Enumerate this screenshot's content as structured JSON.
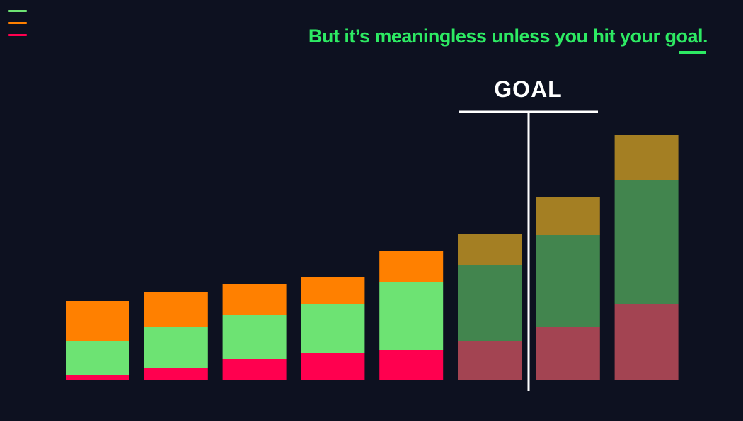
{
  "headline": "But it’s meaningless unless you hit your goal.",
  "goal_label": "GOAL",
  "menu": {
    "icon": "hamburger-menu-icon"
  },
  "colors": {
    "background": "#0d1120",
    "headline": "#2dea63",
    "goal_marker": "#ffffff",
    "menu_lines": [
      "#6de373",
      "#ff8000",
      "#ff004f"
    ],
    "segments_before_goal": [
      "#ff004f",
      "#6de373",
      "#ff8000"
    ],
    "segments_after_goal": [
      "#a34452",
      "#42854e",
      "#a47f23"
    ]
  },
  "chart_data": {
    "type": "bar",
    "stacked": true,
    "title": "",
    "xlabel": "",
    "ylabel": "",
    "ylim": [
      0,
      360
    ],
    "categories": [
      "",
      "",
      "",
      "",
      "",
      "",
      "",
      ""
    ],
    "goal_after_index": 5,
    "series": [
      {
        "values": [
          7,
          17,
          29,
          38,
          42,
          55,
          75,
          108
        ]
      },
      {
        "values": [
          48,
          58,
          63,
          70,
          97,
          108,
          130,
          175
        ]
      },
      {
        "values": [
          56,
          50,
          43,
          38,
          43,
          43,
          53,
          63
        ]
      }
    ]
  }
}
